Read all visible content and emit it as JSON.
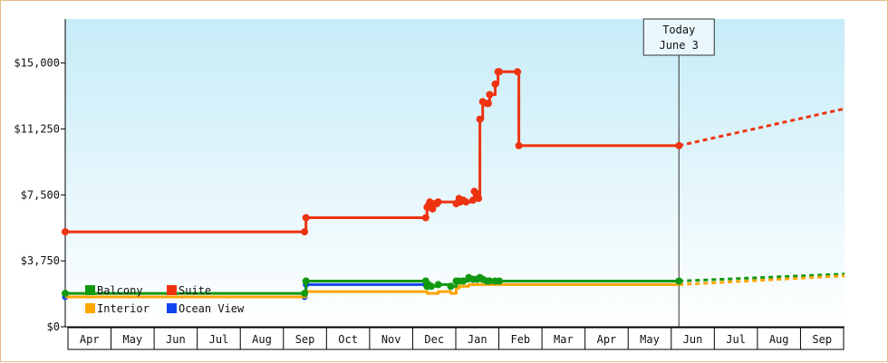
{
  "chart_data": {
    "type": "line",
    "title": "",
    "xlabel": "",
    "ylabel": "",
    "x_ticks": [
      "Apr",
      "May",
      "Jun",
      "Jul",
      "Aug",
      "Sep",
      "Oct",
      "Nov",
      "Dec",
      "Jan",
      "Feb",
      "Mar",
      "Apr",
      "May",
      "Jun",
      "Jul",
      "Aug",
      "Sep"
    ],
    "y_ticks": [
      "$0",
      "$3,750",
      "$7,500",
      "$11,250",
      "$15,000"
    ],
    "ylim": [
      0,
      17500
    ],
    "xlim": [
      "2023-03-20",
      "2024-09-30"
    ],
    "grid": false,
    "background_gradient": [
      "#c6ecf8",
      "#ffffff"
    ],
    "today_marker": {
      "line1": "Today",
      "line2": "June 3",
      "date": "2024-06-03"
    },
    "legend": [
      {
        "name": "Balcony",
        "color": "#119911"
      },
      {
        "name": "Suite",
        "color": "#ee3311"
      },
      {
        "name": "Interior",
        "color": "#ffa500"
      },
      {
        "name": "Ocean View",
        "color": "#1144ee"
      }
    ],
    "series": [
      {
        "name": "Suite",
        "color": "#ee3311",
        "points": [
          [
            "2023-03-20",
            5400
          ],
          [
            "2023-09-08",
            5400
          ],
          [
            "2023-09-09",
            6200
          ],
          [
            "2023-12-04",
            6200
          ],
          [
            "2023-12-05",
            6800
          ],
          [
            "2023-12-06",
            6900
          ],
          [
            "2023-12-07",
            7100
          ],
          [
            "2023-12-09",
            6700
          ],
          [
            "2023-12-10",
            7000
          ],
          [
            "2023-12-12",
            7000
          ],
          [
            "2023-12-13",
            7100
          ],
          [
            "2023-12-26",
            7000
          ],
          [
            "2023-12-28",
            7300
          ],
          [
            "2023-12-29",
            7100
          ],
          [
            "2023-12-31",
            7200
          ],
          [
            "2024-01-02",
            7100
          ],
          [
            "2024-01-07",
            7200
          ],
          [
            "2024-01-08",
            7700
          ],
          [
            "2024-01-10",
            7400
          ],
          [
            "2024-01-11",
            7300
          ],
          [
            "2024-01-12",
            11800
          ],
          [
            "2024-01-14",
            12800
          ],
          [
            "2024-01-17",
            12700
          ],
          [
            "2024-01-18",
            12700
          ],
          [
            "2024-01-19",
            13200
          ],
          [
            "2024-01-23",
            13800
          ],
          [
            "2024-01-25",
            14500
          ],
          [
            "2024-01-26",
            14500
          ],
          [
            "2024-02-08",
            14500
          ],
          [
            "2024-02-09",
            10300
          ],
          [
            "2024-06-03",
            10300
          ]
        ]
      },
      {
        "name": "Balcony",
        "color": "#119911",
        "points": [
          [
            "2023-03-20",
            1900
          ],
          [
            "2023-09-08",
            1900
          ],
          [
            "2023-09-09",
            2600
          ],
          [
            "2023-12-04",
            2600
          ],
          [
            "2023-12-05",
            2300
          ],
          [
            "2023-12-06",
            2400
          ],
          [
            "2023-12-08",
            2300
          ],
          [
            "2023-12-13",
            2400
          ],
          [
            "2023-12-22",
            2300
          ],
          [
            "2023-12-26",
            2600
          ],
          [
            "2023-12-28",
            2600
          ],
          [
            "2023-12-31",
            2600
          ],
          [
            "2024-01-04",
            2800
          ],
          [
            "2024-01-07",
            2700
          ],
          [
            "2024-01-10",
            2700
          ],
          [
            "2024-01-12",
            2800
          ],
          [
            "2024-01-14",
            2700
          ],
          [
            "2024-01-17",
            2600
          ],
          [
            "2024-01-18",
            2600
          ],
          [
            "2024-01-19",
            2600
          ],
          [
            "2024-01-23",
            2600
          ],
          [
            "2024-01-26",
            2600
          ],
          [
            "2024-06-03",
            2600
          ]
        ]
      },
      {
        "name": "Interior",
        "color": "#ffa500",
        "points": [
          [
            "2023-03-20",
            1700
          ],
          [
            "2023-09-08",
            1700
          ],
          [
            "2023-09-09",
            2000
          ],
          [
            "2023-12-04",
            2000
          ],
          [
            "2023-12-05",
            1900
          ],
          [
            "2023-12-08",
            1900
          ],
          [
            "2023-12-13",
            2000
          ],
          [
            "2023-12-22",
            1900
          ],
          [
            "2023-12-26",
            2200
          ],
          [
            "2023-12-28",
            2300
          ],
          [
            "2024-01-04",
            2400
          ],
          [
            "2024-01-26",
            2400
          ],
          [
            "2024-06-03",
            2400
          ]
        ]
      },
      {
        "name": "Ocean View",
        "color": "#1144ee",
        "points": [
          [
            "2023-03-20",
            1700
          ],
          [
            "2023-09-08",
            1700
          ],
          [
            "2023-09-09",
            2400
          ],
          [
            "2023-12-04",
            2400
          ]
        ]
      }
    ],
    "projections": [
      {
        "name": "Suite",
        "color": "#ee3311",
        "points": [
          [
            "2024-06-03",
            10300
          ],
          [
            "2024-09-30",
            12400
          ]
        ]
      },
      {
        "name": "Balcony",
        "color": "#119911",
        "points": [
          [
            "2024-06-03",
            2600
          ],
          [
            "2024-09-30",
            3000
          ]
        ]
      },
      {
        "name": "Interior",
        "color": "#ffa500",
        "points": [
          [
            "2024-06-03",
            2400
          ],
          [
            "2024-09-30",
            2900
          ]
        ]
      }
    ]
  }
}
